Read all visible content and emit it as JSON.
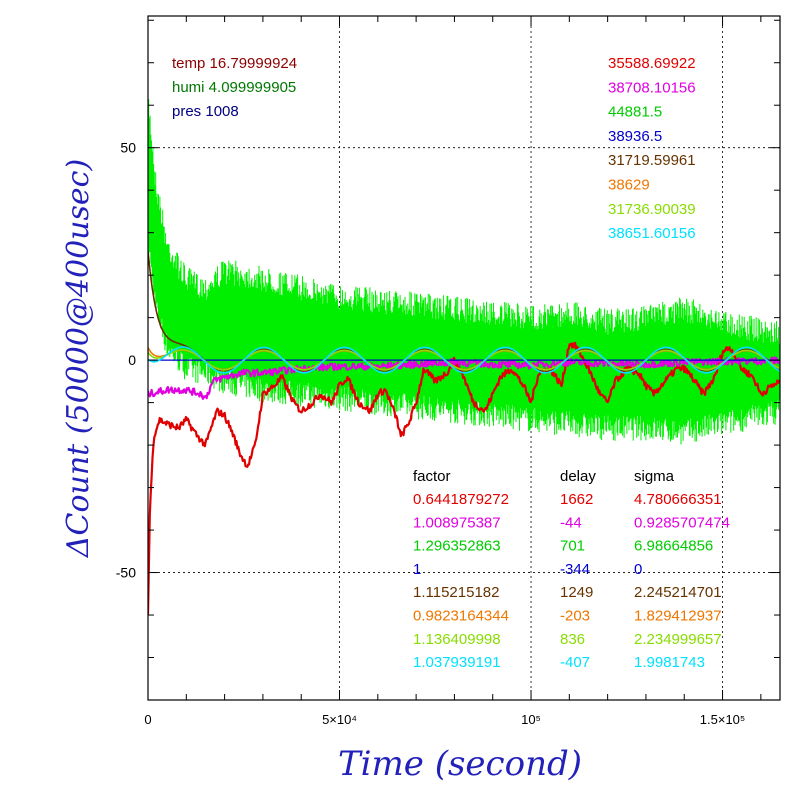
{
  "chart_data": {
    "type": "line",
    "xlabel": "Time (second)",
    "ylabel": "ΔCount (50000@400usec)",
    "xlim": [
      0,
      165000
    ],
    "ylim": [
      -80,
      81
    ],
    "x_ticks": [
      {
        "value": 0,
        "label": "0"
      },
      {
        "value": 50000,
        "label": "5×10⁴"
      },
      {
        "value": 100000,
        "label": "10⁵"
      },
      {
        "value": 150000,
        "label": "1.5×10⁵"
      }
    ],
    "y_ticks": [
      {
        "value": -50,
        "label": "-50"
      },
      {
        "value": 0,
        "label": "0"
      },
      {
        "value": 50,
        "label": "50"
      }
    ],
    "grid": true,
    "env_info": [
      {
        "text": "temp 16.79999924",
        "color": "#8b0000"
      },
      {
        "text": "humi 4.099999905",
        "color": "#007700"
      },
      {
        "text": "pres 1008",
        "color": "#000080"
      }
    ],
    "base_counts": [
      {
        "text": "35588.69922",
        "color": "#e00000"
      },
      {
        "text": "38708.10156",
        "color": "#e000e0"
      },
      {
        "text": "44881.5",
        "color": "#00cc00"
      },
      {
        "text": "38936.5",
        "color": "#0000cc"
      },
      {
        "text": "31719.59961",
        "color": "#663300"
      },
      {
        "text": "38629",
        "color": "#ee7700"
      },
      {
        "text": "31736.90039",
        "color": "#88dd00"
      },
      {
        "text": "38651.60156",
        "color": "#00e0ff"
      }
    ],
    "table_headers": [
      "factor",
      "delay",
      "sigma"
    ],
    "table_rows": [
      {
        "factor": "0.6441879272",
        "delay": "1662",
        "sigma": "4.780666351",
        "color": "#e00000"
      },
      {
        "factor": "1.008975387",
        "delay": "-44",
        "sigma": "0.9285707474",
        "color": "#e000e0"
      },
      {
        "factor": "1.296352863",
        "delay": "701",
        "sigma": "6.98664856",
        "color": "#00cc00"
      },
      {
        "factor": "1",
        "delay": "-344",
        "sigma": "0",
        "color": "#0000cc"
      },
      {
        "factor": "1.115215182",
        "delay": "1249",
        "sigma": "2.245214701",
        "color": "#663300"
      },
      {
        "factor": "0.9823164344",
        "delay": "-203",
        "sigma": "1.829412937",
        "color": "#ee7700"
      },
      {
        "factor": "1.136409998",
        "delay": "836",
        "sigma": "2.234999657",
        "color": "#88dd00"
      },
      {
        "factor": "1.037939191",
        "delay": "-407",
        "sigma": "1.9981743",
        "color": "#00e0ff"
      }
    ],
    "series": [
      {
        "color": "#00ee00",
        "kind": "band",
        "x": [
          0,
          2000,
          5000,
          10000,
          15000,
          20000,
          30000,
          40000,
          50000,
          60000,
          70000,
          80000,
          90000,
          100000,
          110000,
          120000,
          130000,
          140000,
          150000,
          160000,
          165000
        ],
        "upper": [
          65,
          45,
          30,
          22,
          20,
          24,
          22,
          20,
          18,
          17,
          16,
          15,
          14,
          13,
          14,
          12,
          13,
          15,
          12,
          10,
          9
        ],
        "lower": [
          25,
          10,
          0,
          -5,
          -6,
          -8,
          -10,
          -11,
          -12,
          -13,
          -14,
          -15,
          -16,
          -17,
          -18,
          -19,
          -19,
          -20,
          -18,
          -16,
          -15
        ]
      },
      {
        "color": "#e00000",
        "kind": "line",
        "x": [
          0,
          500,
          1500,
          3000,
          5000,
          8000,
          10000,
          13000,
          15000,
          18000,
          20000,
          22000,
          24000,
          26000,
          28000,
          30000,
          33000,
          35000,
          38000,
          40000,
          43000,
          45000,
          48000,
          50000,
          52000,
          55000,
          58000,
          60000,
          62000,
          65000,
          66000,
          68000,
          70000,
          72000,
          75000,
          78000,
          80000,
          82000,
          85000,
          88000,
          90000,
          92000,
          95000,
          98000,
          100000,
          102000,
          105000,
          108000,
          110000,
          112000,
          115000,
          118000,
          120000,
          122000,
          125000,
          128000,
          130000,
          132000,
          135000,
          138000,
          140000,
          142000,
          145000,
          148000,
          150000,
          152000,
          155000,
          158000,
          160000,
          163000,
          165000
        ],
        "y": [
          -60,
          -35,
          -18,
          -14,
          -15,
          -16,
          -14,
          -18,
          -20,
          -12,
          -13,
          -17,
          -22,
          -25,
          -20,
          -8,
          -6,
          -4,
          -10,
          -12,
          -10,
          -8,
          -10,
          -6,
          -4,
          -10,
          -12,
          -8,
          -7,
          -14,
          -18,
          -15,
          -10,
          -2,
          -5,
          -3,
          0,
          -3,
          -10,
          -12,
          -8,
          -4,
          -2,
          -6,
          -10,
          -3,
          -2,
          -6,
          4,
          3,
          -2,
          -8,
          -10,
          -5,
          -2,
          -3,
          -6,
          -8,
          -5,
          -2,
          -2,
          -4,
          -8,
          -4,
          2,
          3,
          -2,
          -4,
          -8,
          -6,
          -5
        ]
      },
      {
        "color": "#e000e0",
        "kind": "line",
        "x": [
          0,
          5000,
          10000,
          14000,
          15000,
          17000,
          20000,
          25000,
          30000,
          40000,
          50000,
          60000,
          70000,
          80000,
          90000,
          100000,
          110000,
          120000,
          130000,
          140000,
          150000,
          160000,
          165000
        ],
        "y": [
          -8,
          -7,
          -7,
          -8,
          -9,
          -5,
          -4,
          -3,
          -3,
          -2,
          -1.5,
          -1.5,
          -1,
          -0.5,
          -1,
          -1.2,
          -0.5,
          -0.8,
          -1,
          -0.5,
          -0.3,
          -0.2,
          -0.1
        ]
      },
      {
        "color": "#0000cc",
        "kind": "line",
        "x": [
          0,
          165000
        ],
        "y": [
          0,
          0
        ]
      },
      {
        "color": "#663300",
        "kind": "decay",
        "amp": 2.5,
        "period": 21000,
        "start": 28,
        "tau": 2800
      },
      {
        "color": "#ee7700",
        "kind": "decay",
        "amp": 2.2,
        "period": 21000,
        "start": 5,
        "tau": 2500
      },
      {
        "color": "#88dd00",
        "kind": "decay",
        "amp": 2.3,
        "period": 21000,
        "start": 4,
        "tau": 2500
      },
      {
        "color": "#00e0ff",
        "kind": "decay",
        "amp": 3.0,
        "period": 21000,
        "start": 3,
        "tau": 2500
      }
    ],
    "colors": {
      "axis_label": "#2222bb",
      "frame": "#000000",
      "grid": "#000000"
    }
  }
}
